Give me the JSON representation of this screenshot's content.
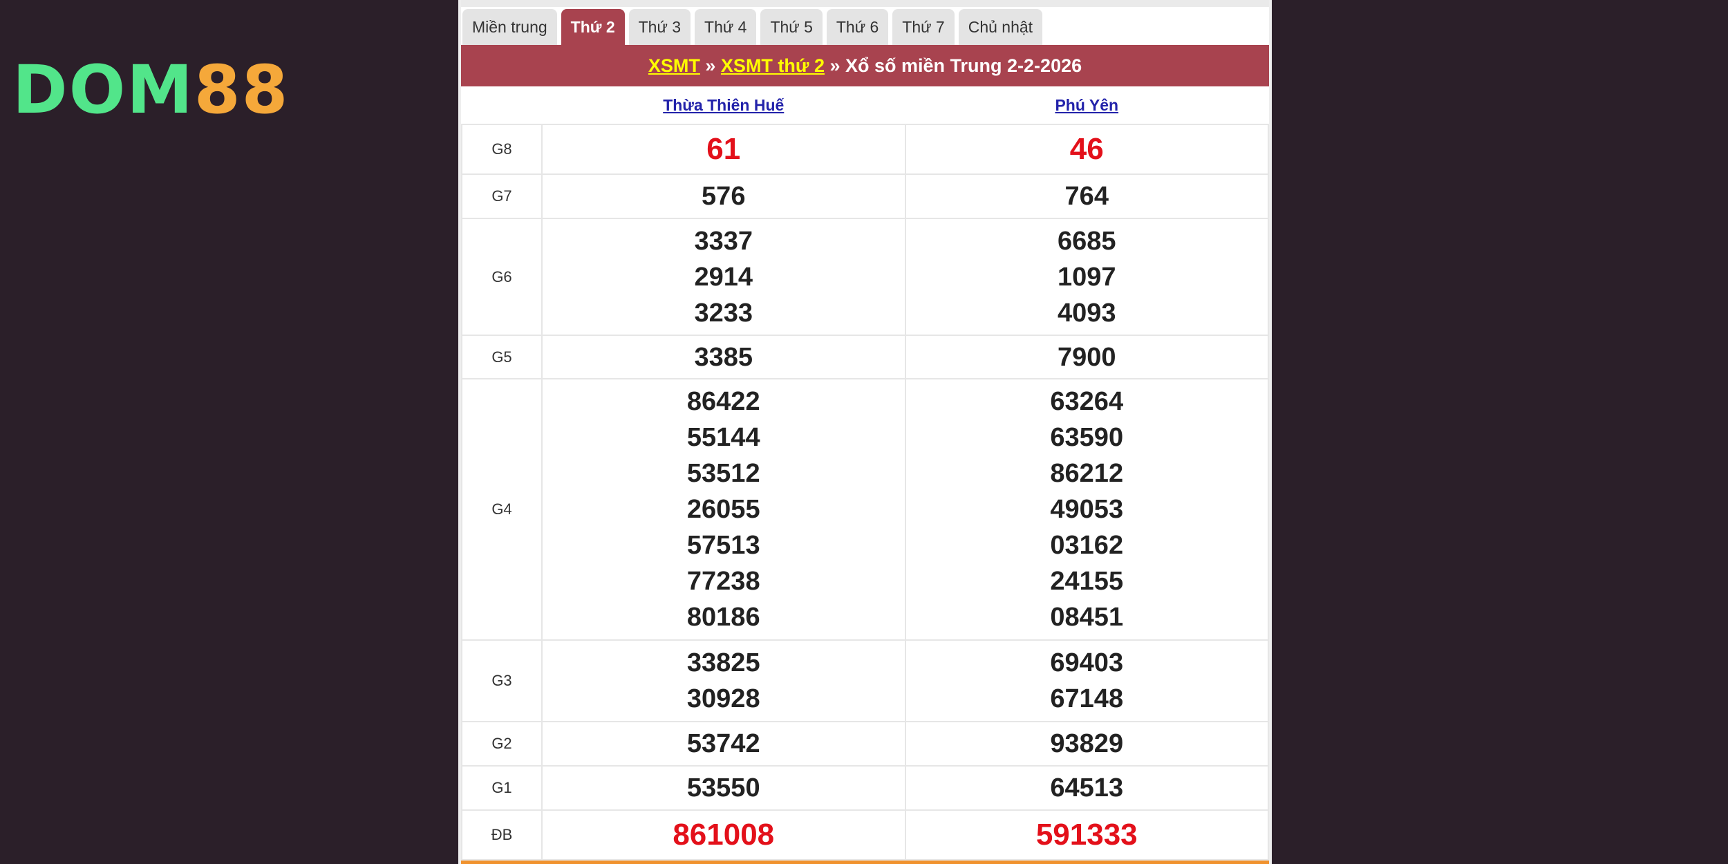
{
  "logo": {
    "part1": "DOM",
    "part2": "88"
  },
  "tabs": [
    "Miền trung",
    "Thứ 2",
    "Thứ 3",
    "Thứ 4",
    "Thứ 5",
    "Thứ 6",
    "Thứ 7",
    "Chủ nhật"
  ],
  "active_tab": "Thứ 2",
  "breadcrumb": {
    "link1": "XSMT",
    "sep": " » ",
    "link2": "XSMT thứ 2",
    "title": "Xổ số miền Trung 2-2-2026"
  },
  "provinces": [
    "Thừa Thiên Huế",
    "Phú Yên"
  ],
  "prizes": [
    {
      "label": "G8",
      "values": [
        [
          "61"
        ],
        [
          "46"
        ]
      ]
    },
    {
      "label": "G7",
      "values": [
        [
          "576"
        ],
        [
          "764"
        ]
      ]
    },
    {
      "label": "G6",
      "values": [
        [
          "3337",
          "2914",
          "3233"
        ],
        [
          "6685",
          "1097",
          "4093"
        ]
      ]
    },
    {
      "label": "G5",
      "values": [
        [
          "3385"
        ],
        [
          "7900"
        ]
      ]
    },
    {
      "label": "G4",
      "values": [
        [
          "86422",
          "55144",
          "53512",
          "26055",
          "57513",
          "77238",
          "80186"
        ],
        [
          "63264",
          "63590",
          "86212",
          "49053",
          "03162",
          "24155",
          "08451"
        ]
      ]
    },
    {
      "label": "G3",
      "values": [
        [
          "33825",
          "30928"
        ],
        [
          "69403",
          "67148"
        ]
      ]
    },
    {
      "label": "G2",
      "values": [
        [
          "53742"
        ],
        [
          "93829"
        ]
      ]
    },
    {
      "label": "G1",
      "values": [
        [
          "53550"
        ],
        [
          "64513"
        ]
      ]
    },
    {
      "label": "ĐB",
      "values": [
        [
          "861008"
        ],
        [
          "591333"
        ]
      ]
    }
  ],
  "colors": {
    "header": "#a8434f",
    "highlight": "#e3101a",
    "link": "#ffff00"
  }
}
